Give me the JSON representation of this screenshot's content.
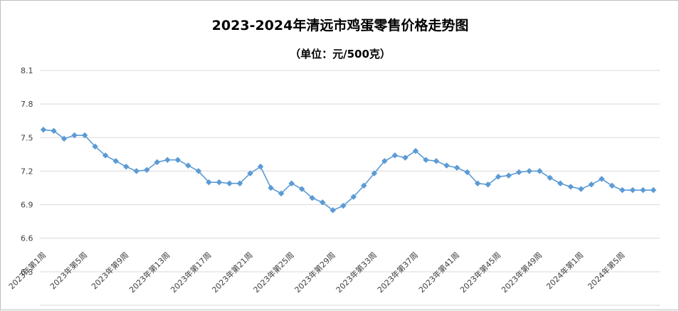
{
  "chart_data": {
    "type": "line",
    "title": "2023-2024年清远市鸡蛋零售价格走势图",
    "subtitle": "（单位：元/500克）",
    "ylim": [
      6.0,
      8.1
    ],
    "yticks": [
      "8.1",
      "7.8",
      "7.5",
      "7.2",
      "6.9",
      "6.6",
      "6.3"
    ],
    "ytick_values": [
      8.1,
      7.8,
      7.5,
      7.2,
      6.9,
      6.6,
      6.3
    ],
    "grid": true,
    "x_labels": [
      "2023年第1周",
      "2023年第5周",
      "2023年第9周",
      "2023年第13周",
      "2023年第17周",
      "2023年第21周",
      "2023年第25周",
      "2023年第29周",
      "2023年第33周",
      "2023年第37周",
      "2023年第41周",
      "2023年第45周",
      "2023年第49周",
      "2024年第1周",
      "2024年第5周"
    ],
    "label_every": 4,
    "series": [
      {
        "color": "#5b9bd5",
        "values": [
          7.57,
          7.56,
          7.49,
          7.52,
          7.52,
          7.42,
          7.34,
          7.29,
          7.24,
          7.2,
          7.21,
          7.28,
          7.3,
          7.3,
          7.25,
          7.2,
          7.1,
          7.1,
          7.09,
          7.09,
          7.18,
          7.24,
          7.05,
          7.0,
          7.09,
          7.04,
          6.96,
          6.92,
          6.85,
          6.89,
          6.97,
          7.07,
          7.18,
          7.29,
          7.34,
          7.32,
          7.38,
          7.3,
          7.29,
          7.25,
          7.23,
          7.19,
          7.09,
          7.08,
          7.15,
          7.16,
          7.19,
          7.2,
          7.2,
          7.14,
          7.09,
          7.06,
          7.04,
          7.08,
          7.13,
          7.07,
          7.03,
          7.03,
          7.03,
          7.03
        ]
      }
    ]
  }
}
